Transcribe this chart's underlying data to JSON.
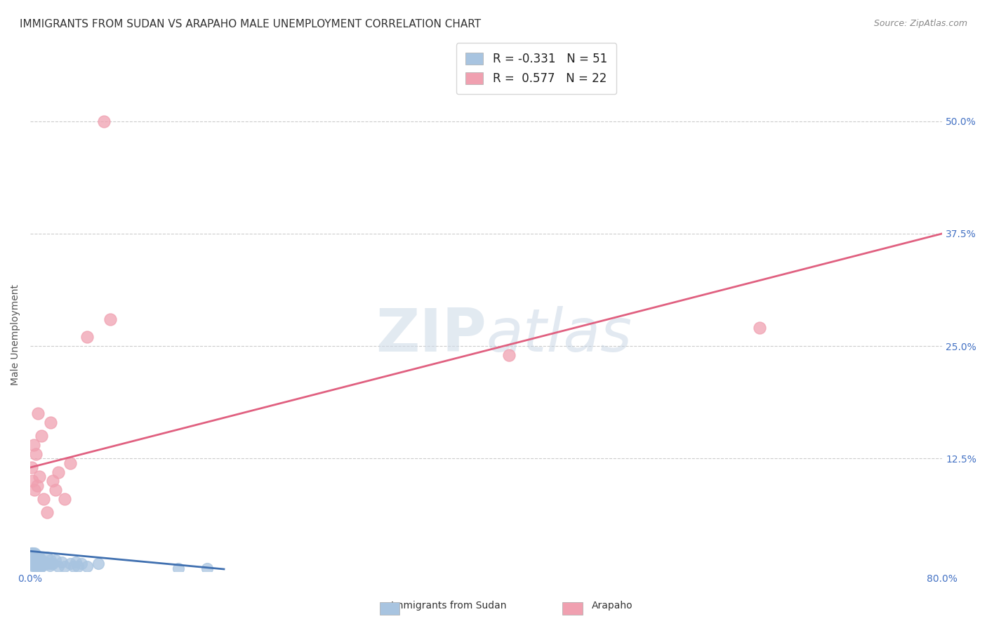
{
  "title": "IMMIGRANTS FROM SUDAN VS ARAPAHO MALE UNEMPLOYMENT CORRELATION CHART",
  "source": "Source: ZipAtlas.com",
  "xlabel_blue": "Immigrants from Sudan",
  "xlabel_pink": "Arapaho",
  "ylabel": "Male Unemployment",
  "xlim": [
    0.0,
    0.8
  ],
  "ylim": [
    0.0,
    0.525
  ],
  "xticks": [
    0.0,
    0.2,
    0.4,
    0.6,
    0.8
  ],
  "xtick_labels": [
    "0.0%",
    "",
    "",
    "",
    "80.0%"
  ],
  "ytick_positions": [
    0.0,
    0.125,
    0.25,
    0.375,
    0.5
  ],
  "ytick_labels": [
    "",
    "12.5%",
    "25.0%",
    "37.5%",
    "50.0%"
  ],
  "legend_R_blue": "R = -0.331",
  "legend_N_blue": "N = 51",
  "legend_R_pink": "R =  0.577",
  "legend_N_pink": "N = 22",
  "blue_color": "#a8c4e0",
  "pink_color": "#f0a0b0",
  "blue_line_color": "#4070b0",
  "pink_line_color": "#e06080",
  "watermark_zip": "ZIP",
  "watermark_atlas": "atlas",
  "blue_scatter_x": [
    0.001,
    0.001,
    0.001,
    0.002,
    0.002,
    0.002,
    0.003,
    0.003,
    0.003,
    0.004,
    0.004,
    0.004,
    0.005,
    0.005,
    0.005,
    0.006,
    0.006,
    0.006,
    0.007,
    0.007,
    0.007,
    0.008,
    0.008,
    0.008,
    0.009,
    0.009,
    0.01,
    0.01,
    0.011,
    0.012,
    0.013,
    0.014,
    0.015,
    0.016,
    0.017,
    0.018,
    0.019,
    0.02,
    0.022,
    0.025,
    0.028,
    0.03,
    0.035,
    0.038,
    0.04,
    0.042,
    0.045,
    0.05,
    0.06,
    0.13,
    0.155
  ],
  "blue_scatter_y": [
    0.02,
    0.015,
    0.01,
    0.02,
    0.012,
    0.008,
    0.018,
    0.01,
    0.005,
    0.02,
    0.012,
    0.006,
    0.018,
    0.01,
    0.005,
    0.015,
    0.008,
    0.003,
    0.015,
    0.01,
    0.005,
    0.015,
    0.008,
    0.003,
    0.012,
    0.005,
    0.012,
    0.005,
    0.01,
    0.008,
    0.01,
    0.008,
    0.015,
    0.008,
    0.006,
    0.012,
    0.008,
    0.008,
    0.012,
    0.005,
    0.01,
    0.005,
    0.008,
    0.005,
    0.01,
    0.005,
    0.008,
    0.005,
    0.008,
    0.003,
    0.003
  ],
  "pink_scatter_x": [
    0.001,
    0.002,
    0.003,
    0.004,
    0.005,
    0.006,
    0.007,
    0.008,
    0.01,
    0.012,
    0.015,
    0.018,
    0.02,
    0.022,
    0.025,
    0.03,
    0.035,
    0.05,
    0.065,
    0.07,
    0.42,
    0.64
  ],
  "pink_scatter_y": [
    0.115,
    0.1,
    0.14,
    0.09,
    0.13,
    0.095,
    0.175,
    0.105,
    0.15,
    0.08,
    0.065,
    0.165,
    0.1,
    0.09,
    0.11,
    0.08,
    0.12,
    0.26,
    0.5,
    0.28,
    0.24,
    0.27
  ],
  "blue_trend_x": [
    0.0,
    0.17
  ],
  "blue_trend_y": [
    0.022,
    0.002
  ],
  "pink_trend_x": [
    0.0,
    0.8
  ],
  "pink_trend_y": [
    0.115,
    0.375
  ],
  "grid_color": "#cccccc",
  "background_color": "#ffffff",
  "title_fontsize": 11,
  "axis_label_fontsize": 10,
  "tick_fontsize": 10,
  "legend_fontsize": 12,
  "source_fontsize": 9
}
